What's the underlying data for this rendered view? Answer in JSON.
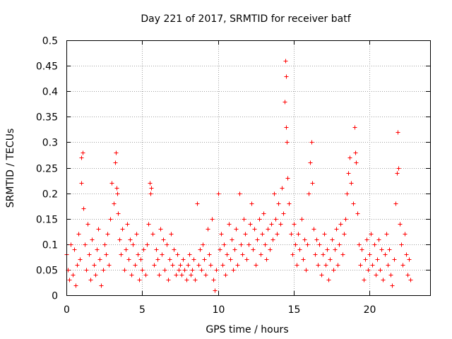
{
  "chart_data": {
    "type": "scatter",
    "title": "Day 221 of 2017, SRMTID for receiver batf",
    "xlabel": "GPS time / hours",
    "ylabel": "SRMTID / TECUs",
    "xlim": [
      0,
      24
    ],
    "ylim": [
      0,
      0.5
    ],
    "x_ticks": [
      0,
      5,
      10,
      15,
      20
    ],
    "x_tick_labels": [
      "0",
      "5",
      "10",
      "15",
      "20"
    ],
    "y_ticks": [
      0,
      0.05,
      0.1,
      0.15,
      0.2,
      0.25,
      0.3,
      0.35,
      0.4,
      0.45,
      0.5
    ],
    "y_tick_labels": [
      "0",
      "0.05",
      "0.1",
      "0.15",
      "0.2",
      "0.25",
      "0.3",
      "0.35",
      "0.4",
      "0.45",
      "0.5"
    ],
    "grid": true,
    "marker": "+",
    "color": "#ff0000",
    "series": [
      {
        "name": "SRMTID",
        "points": [
          [
            0.0,
            0.08
          ],
          [
            0.1,
            0.05
          ],
          [
            0.2,
            0.03
          ],
          [
            0.3,
            0.1
          ],
          [
            0.4,
            0.04
          ],
          [
            0.5,
            0.09
          ],
          [
            0.6,
            0.02
          ],
          [
            0.7,
            0.06
          ],
          [
            0.8,
            0.12
          ],
          [
            0.9,
            0.07
          ],
          [
            1.0,
            0.27
          ],
          [
            1.0,
            0.22
          ],
          [
            1.05,
            0.28
          ],
          [
            1.1,
            0.17
          ],
          [
            1.2,
            0.1
          ],
          [
            1.3,
            0.05
          ],
          [
            1.4,
            0.14
          ],
          [
            1.5,
            0.08
          ],
          [
            1.6,
            0.03
          ],
          [
            1.7,
            0.11
          ],
          [
            1.8,
            0.06
          ],
          [
            1.9,
            0.04
          ],
          [
            2.0,
            0.09
          ],
          [
            2.1,
            0.13
          ],
          [
            2.2,
            0.07
          ],
          [
            2.3,
            0.02
          ],
          [
            2.4,
            0.05
          ],
          [
            2.5,
            0.1
          ],
          [
            2.6,
            0.08
          ],
          [
            2.7,
            0.12
          ],
          [
            2.8,
            0.06
          ],
          [
            2.9,
            0.15
          ],
          [
            3.0,
            0.22
          ],
          [
            3.1,
            0.18
          ],
          [
            3.2,
            0.26
          ],
          [
            3.25,
            0.28
          ],
          [
            3.3,
            0.21
          ],
          [
            3.35,
            0.2
          ],
          [
            3.4,
            0.16
          ],
          [
            3.5,
            0.11
          ],
          [
            3.6,
            0.08
          ],
          [
            3.7,
            0.13
          ],
          [
            3.8,
            0.05
          ],
          [
            3.9,
            0.09
          ],
          [
            4.0,
            0.14
          ],
          [
            4.1,
            0.07
          ],
          [
            4.2,
            0.11
          ],
          [
            4.3,
            0.04
          ],
          [
            4.4,
            0.1
          ],
          [
            4.5,
            0.06
          ],
          [
            4.6,
            0.12
          ],
          [
            4.7,
            0.08
          ],
          [
            4.8,
            0.03
          ],
          [
            4.9,
            0.07
          ],
          [
            5.0,
            0.05
          ],
          [
            5.1,
            0.09
          ],
          [
            5.2,
            0.04
          ],
          [
            5.3,
            0.1
          ],
          [
            5.4,
            0.14
          ],
          [
            5.5,
            0.22
          ],
          [
            5.55,
            0.2
          ],
          [
            5.6,
            0.21
          ],
          [
            5.7,
            0.12
          ],
          [
            5.8,
            0.06
          ],
          [
            5.9,
            0.09
          ],
          [
            6.0,
            0.07
          ],
          [
            6.1,
            0.04
          ],
          [
            6.2,
            0.13
          ],
          [
            6.3,
            0.08
          ],
          [
            6.4,
            0.11
          ],
          [
            6.5,
            0.05
          ],
          [
            6.6,
            0.1
          ],
          [
            6.7,
            0.03
          ],
          [
            6.8,
            0.07
          ],
          [
            6.9,
            0.12
          ],
          [
            7.0,
            0.06
          ],
          [
            7.1,
            0.09
          ],
          [
            7.2,
            0.04
          ],
          [
            7.3,
            0.08
          ],
          [
            7.4,
            0.05
          ],
          [
            7.5,
            0.06
          ],
          [
            7.6,
            0.04
          ],
          [
            7.7,
            0.07
          ],
          [
            7.8,
            0.05
          ],
          [
            7.9,
            0.03
          ],
          [
            8.0,
            0.06
          ],
          [
            8.1,
            0.08
          ],
          [
            8.2,
            0.04
          ],
          [
            8.3,
            0.05
          ],
          [
            8.4,
            0.07
          ],
          [
            8.5,
            0.03
          ],
          [
            8.6,
            0.18
          ],
          [
            8.7,
            0.06
          ],
          [
            8.8,
            0.09
          ],
          [
            8.9,
            0.05
          ],
          [
            9.0,
            0.1
          ],
          [
            9.1,
            0.07
          ],
          [
            9.2,
            0.04
          ],
          [
            9.3,
            0.13
          ],
          [
            9.4,
            0.08
          ],
          [
            9.5,
            0.06
          ],
          [
            9.6,
            0.15
          ],
          [
            9.7,
            0.03
          ],
          [
            9.8,
            0.01
          ],
          [
            9.9,
            0.05
          ],
          [
            10.0,
            0.2
          ],
          [
            10.1,
            0.09
          ],
          [
            10.2,
            0.12
          ],
          [
            10.3,
            0.06
          ],
          [
            10.4,
            0.1
          ],
          [
            10.5,
            0.04
          ],
          [
            10.6,
            0.08
          ],
          [
            10.7,
            0.14
          ],
          [
            10.8,
            0.07
          ],
          [
            10.9,
            0.11
          ],
          [
            11.0,
            0.05
          ],
          [
            11.1,
            0.09
          ],
          [
            11.2,
            0.13
          ],
          [
            11.3,
            0.06
          ],
          [
            11.4,
            0.2
          ],
          [
            11.5,
            0.1
          ],
          [
            11.6,
            0.08
          ],
          [
            11.7,
            0.15
          ],
          [
            11.8,
            0.12
          ],
          [
            11.9,
            0.07
          ],
          [
            12.0,
            0.1
          ],
          [
            12.1,
            0.14
          ],
          [
            12.2,
            0.18
          ],
          [
            12.3,
            0.09
          ],
          [
            12.4,
            0.13
          ],
          [
            12.5,
            0.06
          ],
          [
            12.6,
            0.11
          ],
          [
            12.7,
            0.15
          ],
          [
            12.8,
            0.08
          ],
          [
            12.9,
            0.12
          ],
          [
            13.0,
            0.16
          ],
          [
            13.1,
            0.1
          ],
          [
            13.2,
            0.07
          ],
          [
            13.3,
            0.13
          ],
          [
            13.4,
            0.09
          ],
          [
            13.5,
            0.14
          ],
          [
            13.6,
            0.11
          ],
          [
            13.7,
            0.2
          ],
          [
            13.8,
            0.15
          ],
          [
            13.9,
            0.12
          ],
          [
            14.0,
            0.18
          ],
          [
            14.1,
            0.14
          ],
          [
            14.2,
            0.21
          ],
          [
            14.3,
            0.16
          ],
          [
            14.4,
            0.38
          ],
          [
            14.45,
            0.46
          ],
          [
            14.5,
            0.43
          ],
          [
            14.5,
            0.33
          ],
          [
            14.55,
            0.3
          ],
          [
            14.6,
            0.23
          ],
          [
            14.7,
            0.18
          ],
          [
            14.8,
            0.12
          ],
          [
            14.9,
            0.08
          ],
          [
            15.0,
            0.14
          ],
          [
            15.1,
            0.1
          ],
          [
            15.2,
            0.06
          ],
          [
            15.3,
            0.12
          ],
          [
            15.4,
            0.09
          ],
          [
            15.5,
            0.15
          ],
          [
            15.6,
            0.07
          ],
          [
            15.7,
            0.11
          ],
          [
            15.8,
            0.05
          ],
          [
            15.9,
            0.1
          ],
          [
            16.0,
            0.2
          ],
          [
            16.1,
            0.26
          ],
          [
            16.15,
            0.3
          ],
          [
            16.2,
            0.22
          ],
          [
            16.3,
            0.13
          ],
          [
            16.4,
            0.08
          ],
          [
            16.5,
            0.11
          ],
          [
            16.6,
            0.06
          ],
          [
            16.7,
            0.1
          ],
          [
            16.8,
            0.04
          ],
          [
            16.9,
            0.08
          ],
          [
            17.0,
            0.12
          ],
          [
            17.1,
            0.06
          ],
          [
            17.2,
            0.09
          ],
          [
            17.3,
            0.03
          ],
          [
            17.4,
            0.07
          ],
          [
            17.5,
            0.11
          ],
          [
            17.6,
            0.05
          ],
          [
            17.7,
            0.09
          ],
          [
            17.8,
            0.13
          ],
          [
            17.9,
            0.06
          ],
          [
            18.0,
            0.1
          ],
          [
            18.1,
            0.14
          ],
          [
            18.2,
            0.08
          ],
          [
            18.3,
            0.12
          ],
          [
            18.4,
            0.15
          ],
          [
            18.5,
            0.2
          ],
          [
            18.6,
            0.24
          ],
          [
            18.7,
            0.27
          ],
          [
            18.8,
            0.22
          ],
          [
            18.9,
            0.18
          ],
          [
            19.0,
            0.33
          ],
          [
            19.05,
            0.28
          ],
          [
            19.1,
            0.26
          ],
          [
            19.2,
            0.16
          ],
          [
            19.3,
            0.1
          ],
          [
            19.4,
            0.06
          ],
          [
            19.5,
            0.09
          ],
          [
            19.6,
            0.03
          ],
          [
            19.7,
            0.07
          ],
          [
            19.8,
            0.11
          ],
          [
            19.9,
            0.05
          ],
          [
            20.0,
            0.08
          ],
          [
            20.1,
            0.12
          ],
          [
            20.2,
            0.06
          ],
          [
            20.3,
            0.1
          ],
          [
            20.4,
            0.04
          ],
          [
            20.5,
            0.07
          ],
          [
            20.6,
            0.11
          ],
          [
            20.7,
            0.05
          ],
          [
            20.8,
            0.09
          ],
          [
            20.9,
            0.03
          ],
          [
            21.0,
            0.08
          ],
          [
            21.1,
            0.12
          ],
          [
            21.2,
            0.06
          ],
          [
            21.3,
            0.09
          ],
          [
            21.4,
            0.04
          ],
          [
            21.5,
            0.02
          ],
          [
            21.6,
            0.07
          ],
          [
            21.7,
            0.18
          ],
          [
            21.8,
            0.24
          ],
          [
            21.85,
            0.32
          ],
          [
            21.9,
            0.25
          ],
          [
            22.0,
            0.14
          ],
          [
            22.1,
            0.1
          ],
          [
            22.2,
            0.06
          ],
          [
            22.3,
            0.12
          ],
          [
            22.4,
            0.08
          ],
          [
            22.5,
            0.04
          ],
          [
            22.6,
            0.07
          ],
          [
            22.7,
            0.03
          ]
        ]
      }
    ]
  }
}
